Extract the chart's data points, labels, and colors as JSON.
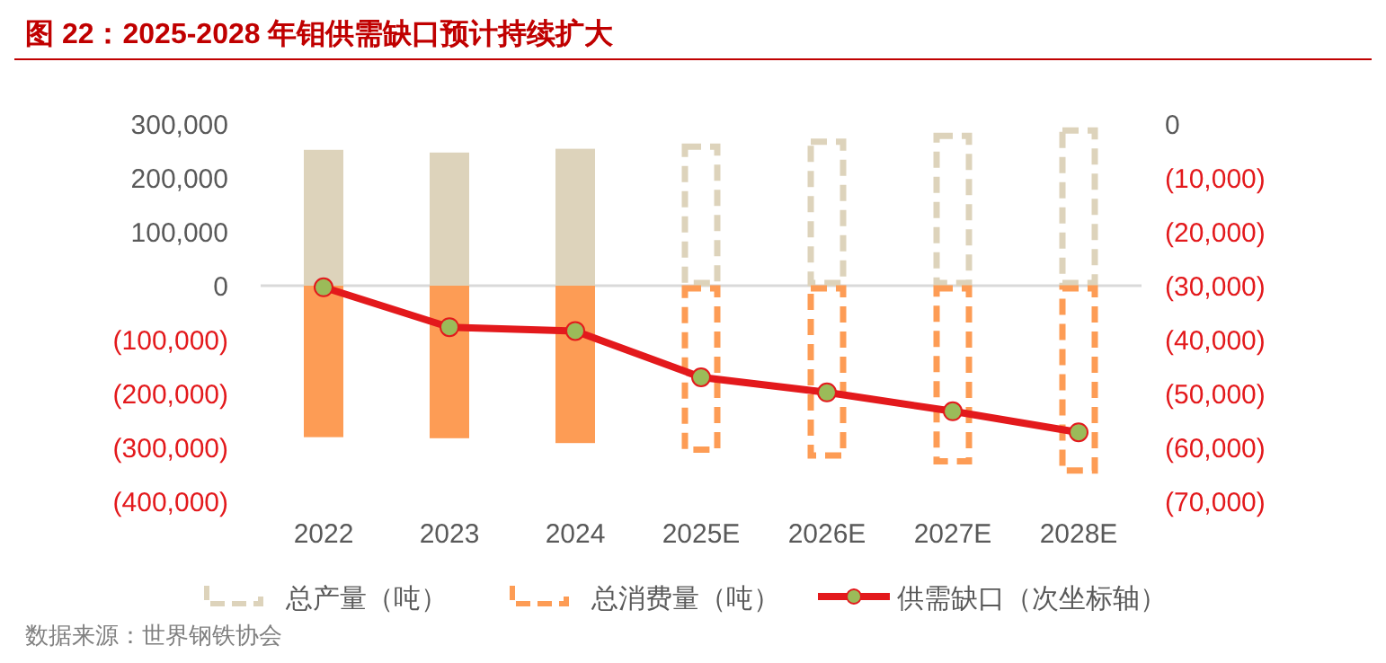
{
  "chart_data": {
    "type": "bar",
    "title": "图 22：2025-2028 年钼供需缺口预计持续扩大",
    "categories": [
      "2022",
      "2023",
      "2024",
      "2025E",
      "2026E",
      "2027E",
      "2028E"
    ],
    "stacked": true,
    "series": [
      {
        "color": "#ddd3bb",
        "values": [
          252000,
          247000,
          254000,
          null,
          null,
          null,
          null
        ]
      },
      {
        "name": "总产量（吨）",
        "color": "#ddd3bb",
        "line_style": "dashed",
        "values": [
          null,
          null,
          null,
          263000,
          272000,
          283000,
          293000
        ]
      },
      {
        "color": "#fd9c55",
        "values": [
          -281000,
          -283000,
          -292000,
          null,
          null,
          null,
          null
        ]
      },
      {
        "name": "总消费量（吨）",
        "color": "#fd9c55",
        "line_style": "dashed",
        "values": [
          null,
          null,
          null,
          -309000,
          -320000,
          -331000,
          -348000
        ]
      },
      {
        "name": "供需缺口（次坐标轴）",
        "type": "line",
        "axis": "y2",
        "color": "#e3191c",
        "marker": "circle",
        "values": [
          -30300,
          -37700,
          -38400,
          -47000,
          -49800,
          -53300,
          -57200
        ]
      }
    ],
    "ylim": [
      -400000,
      300000
    ],
    "yticks": [
      {
        "value": -400000,
        "label": "(400,000)"
      },
      {
        "value": -300000,
        "label": "(300,000)"
      },
      {
        "value": -200000,
        "label": "(200,000)"
      },
      {
        "value": -100000,
        "label": "(100,000)"
      },
      0,
      {
        "value": 100000,
        "label": "100,000"
      },
      {
        "value": 200000,
        "label": "200,000"
      },
      {
        "value": 300000,
        "label": "300,000"
      }
    ],
    "y2lim": [
      -70000,
      0
    ],
    "y2ticks": [
      {
        "value": -70000,
        "label": "(70,000)"
      },
      {
        "value": -60000,
        "label": "(60,000)"
      },
      {
        "value": -50000,
        "label": "(50,000)"
      },
      {
        "value": -40000,
        "label": "(40,000)"
      },
      {
        "value": -30000,
        "label": "(30,000)"
      },
      {
        "value": -20000,
        "label": "(20,000)"
      },
      {
        "value": -10000,
        "label": "(10,000)"
      },
      0
    ],
    "legend": "bottom",
    "annotations": [
      "数据来源：世界钢铁协会"
    ]
  }
}
